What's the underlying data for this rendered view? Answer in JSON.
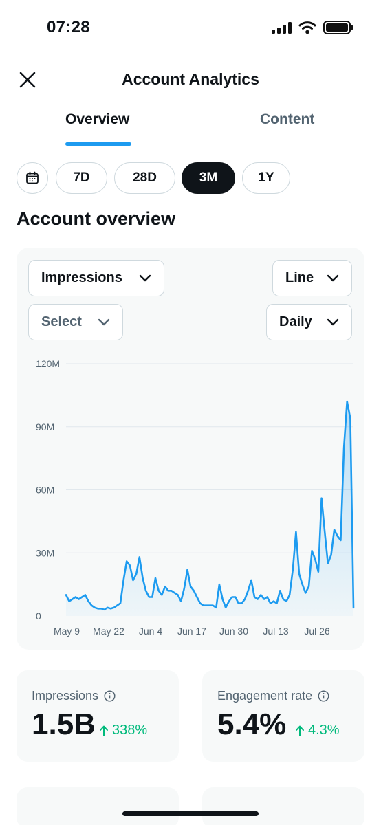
{
  "status_bar": {
    "time": "07:28"
  },
  "header": {
    "title": "Account Analytics"
  },
  "tabs": [
    {
      "label": "Overview",
      "active": true
    },
    {
      "label": "Content",
      "active": false
    }
  ],
  "ranges": [
    {
      "label": "7D",
      "active": false
    },
    {
      "label": "28D",
      "active": false
    },
    {
      "label": "3M",
      "active": true
    },
    {
      "label": "1Y",
      "active": false
    }
  ],
  "section_title": "Account overview",
  "controls": {
    "metric": "Impressions",
    "chart_style": "Line",
    "compare": "Select",
    "interval": "Daily"
  },
  "chart_data": {
    "type": "area",
    "ylim": [
      0,
      120
    ],
    "y_ticks": [
      "0",
      "30M",
      "60M",
      "90M",
      "120M"
    ],
    "x_ticks": [
      "May 9",
      "May 22",
      "Jun 4",
      "Jun 17",
      "Jun 30",
      "Jul 13",
      "Jul 26"
    ],
    "grid": true,
    "colors": {
      "line": "#1d9bf0"
    },
    "series": [
      {
        "values": [
          10,
          7,
          8,
          9,
          8,
          9,
          10,
          7,
          5,
          4,
          3.5,
          3.5,
          3,
          4,
          3.5,
          4,
          5,
          6,
          17,
          26,
          24,
          17,
          20,
          28,
          18,
          12,
          9,
          9,
          18,
          12,
          10,
          14,
          12,
          12,
          11,
          10,
          7,
          13,
          22,
          14,
          12,
          9,
          6,
          5,
          5,
          5,
          5,
          4,
          15,
          8,
          4,
          7,
          9,
          9,
          6,
          6,
          8,
          12,
          17,
          9,
          8,
          10,
          8,
          9,
          6,
          7,
          6,
          12,
          8,
          7,
          10,
          22,
          40,
          20,
          15,
          11,
          14,
          31,
          27,
          21,
          56,
          40,
          25,
          29,
          41,
          38,
          36,
          80,
          102,
          94,
          4
        ]
      }
    ]
  },
  "metrics": [
    {
      "label": "Impressions",
      "value": "1.5B",
      "change": "338%"
    },
    {
      "label": "Engagement rate",
      "value": "5.4%",
      "change": "4.3%"
    }
  ]
}
